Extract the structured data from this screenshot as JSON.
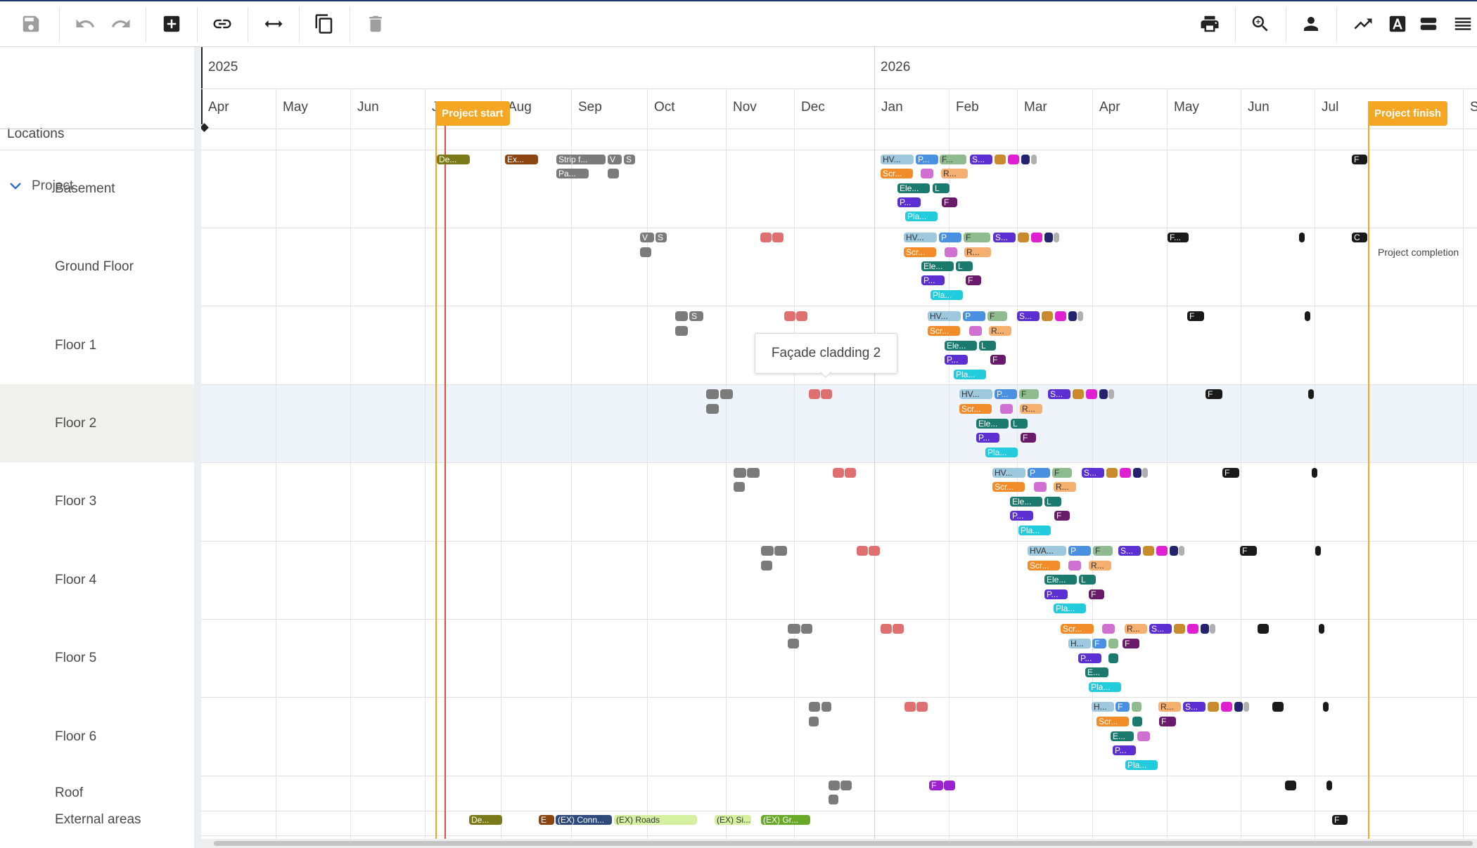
{
  "toolbar": {
    "left_icons": [
      "save-icon",
      "undo-icon",
      "redo-icon",
      "add-icon",
      "link-icon",
      "resize-horizontal-icon",
      "copy-icon",
      "delete-icon"
    ],
    "right_icons": [
      "print-icon",
      "zoom-icon",
      "person-icon",
      "trend-icon",
      "text-format-icon",
      "rows-icon",
      "menu-icon"
    ]
  },
  "left_panel": {
    "header": "Locations",
    "project_label": "Project",
    "locations": [
      "Basement",
      "Ground Floor",
      "Floor 1",
      "Floor 2",
      "Floor 3",
      "Floor 4",
      "Floor 5",
      "Floor 6",
      "Roof",
      "External areas"
    ]
  },
  "timeline": {
    "years": [
      "2025",
      "2026"
    ],
    "months": [
      "Apr",
      "May",
      "Jun",
      "J",
      "Aug",
      "Sep",
      "Oct",
      "Nov",
      "Dec",
      "Jan",
      "Feb",
      "Mar",
      "Apr",
      "May",
      "Jun",
      "Jul",
      "S"
    ],
    "project_start_label": "Project start",
    "project_finish_label": "Project finish",
    "project_completion_label": "Project completion",
    "tooltip": "Façade cladding 2"
  },
  "task_labels": {
    "basement": [
      "De...",
      "Ex...",
      "Strip f...",
      "V",
      "S",
      "Pa...",
      "HV...",
      "P...",
      "F...",
      "S...",
      "Scr...",
      "R...",
      "Ele...",
      "L",
      "P...",
      "F",
      "Pla...",
      "F"
    ],
    "ground": [
      "V",
      "S",
      "HV...",
      "P",
      "F",
      "S...",
      "Scr...",
      "R...",
      "Ele...",
      "L",
      "P...",
      "F",
      "Pla...",
      "F...",
      "C"
    ],
    "floor1": [
      "S",
      "HV...",
      "P",
      "F",
      "S...",
      "Scr...",
      "R...",
      "Ele...",
      "L",
      "P...",
      "F",
      "Pla...",
      "F"
    ],
    "floor2": [
      "HV...",
      "P...",
      "F",
      "S...",
      "Scr...",
      "R...",
      "Ele...",
      "L",
      "P...",
      "F",
      "Pla...",
      "F"
    ],
    "floor3": [
      "HV...",
      "P",
      "F",
      "S...",
      "Scr...",
      "R...",
      "Ele...",
      "L",
      "P...",
      "F",
      "Pla...",
      "F"
    ],
    "floor4": [
      "HVA...",
      "P",
      "F",
      "S...",
      "Scr...",
      "R...",
      "Ele...",
      "L",
      "P...",
      "F",
      "Pla...",
      "F"
    ],
    "floor5": [
      "Scr...",
      "R...",
      "S...",
      "H...",
      "F",
      "F",
      "P...",
      "E...",
      "Pla..."
    ],
    "floor6": [
      "H...",
      "F",
      "R...",
      "S...",
      "Scr...",
      "F",
      "E...",
      "P...",
      "Pla..."
    ],
    "roof": [
      "F"
    ],
    "external": [
      "De...",
      "E",
      "(EX) Conn...",
      "(EX) Roads",
      "(EX) Si...",
      "(EX) Gr...",
      "F"
    ]
  },
  "colors": {
    "accent_orange": "#f5a623",
    "today_line": "#e74c3c",
    "toolbar_border": "#1f3b6e",
    "selected_row": "#eef4fa"
  }
}
